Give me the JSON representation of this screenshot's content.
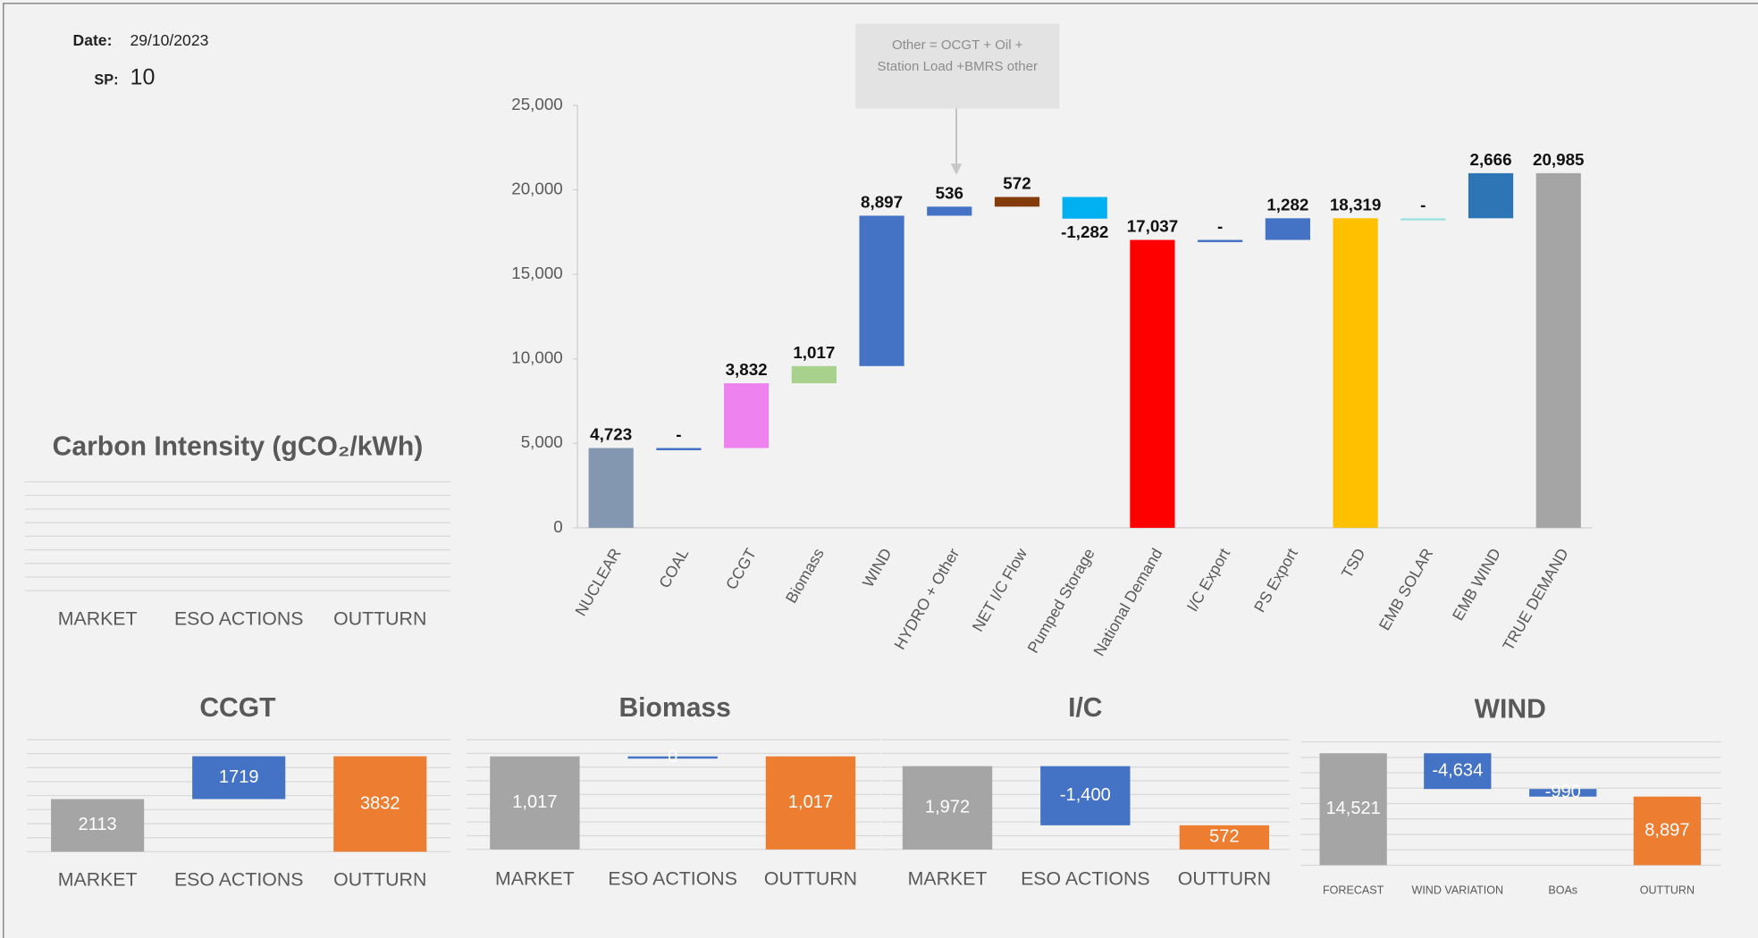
{
  "header": {
    "date_label": "Date:",
    "date": "29/10/2023",
    "sp_label": "SP:",
    "sp": 10
  },
  "chart_data": [
    {
      "type": "waterfall",
      "annotation": "Other = OCGT + Oil + Station Load +BMRS other",
      "categories": [
        "NUCLEAR",
        "COAL",
        "CCGT",
        "Biomass",
        "WIND",
        "HYDRO + Other",
        "NET I/C Flow",
        "Pumped Storage",
        "National Demand",
        "I/C Export",
        "PS Export",
        "TSD",
        "EMB SOLAR",
        "EMB WIND",
        "TRUE DEMAND"
      ],
      "values": [
        4723,
        0,
        3832,
        1017,
        8897,
        536,
        572,
        -1282,
        17037,
        0,
        1282,
        18319,
        0,
        2666,
        20985
      ],
      "value_labels": [
        "4,723",
        "-",
        "3,832",
        "1,017",
        "8,897",
        "536",
        "572",
        "-1,282",
        "17,037",
        "-",
        "1,282",
        "18,319",
        "-",
        "2,666",
        "20,985"
      ],
      "colors": [
        "#8497b0",
        "#4472c4",
        "#ee82ee",
        "#a9d18e",
        "#4472c4",
        "#4472c4",
        "#843c0c",
        "#00b0f0",
        "#ff0000",
        "#4472c4",
        "#4472c4",
        "#ffc000",
        "#9fe3e3",
        "#2e75b6",
        "#a5a5a5"
      ],
      "totals": [
        false,
        false,
        false,
        false,
        false,
        false,
        false,
        false,
        true,
        false,
        false,
        true,
        false,
        false,
        true
      ],
      "ylim": [
        0,
        25000
      ],
      "yticks": [
        0,
        {
          "value": 5000,
          "label": "5,000"
        },
        {
          "value": 10000,
          "label": "10,000"
        },
        {
          "value": 15000,
          "label": "15,000"
        },
        {
          "value": 20000,
          "label": "20,000"
        },
        {
          "value": 25000,
          "label": "25,000"
        }
      ]
    },
    {
      "type": "waterfall",
      "title": "Carbon Intensity (gCO₂/kWh)",
      "categories": [
        "MARKET",
        "ESO ACTIONS",
        "OUTTURN"
      ]
    },
    {
      "type": "waterfall",
      "title": "CCGT",
      "categories": [
        "MARKET",
        "ESO ACTIONS",
        "OUTTURN"
      ],
      "values": [
        2113,
        1719,
        3832
      ],
      "colors": [
        "#a5a5a5",
        "#4472c4",
        "#ed7d31"
      ],
      "totals": [
        true,
        false,
        true
      ],
      "ylim": [
        0,
        4500
      ]
    },
    {
      "type": "waterfall",
      "title": "Biomass",
      "categories": [
        "MARKET",
        "ESO ACTIONS",
        "OUTTURN"
      ],
      "values": [
        1017,
        0,
        1017
      ],
      "value_labels": [
        "1,017",
        "0",
        "1,017"
      ],
      "colors": [
        "#a5a5a5",
        "#4472c4",
        "#ed7d31"
      ],
      "totals": [
        true,
        false,
        true
      ],
      "ylim": [
        0,
        1200
      ]
    },
    {
      "type": "waterfall",
      "title": "I/C",
      "categories": [
        "MARKET",
        "ESO ACTIONS",
        "OUTTURN"
      ],
      "values": [
        1972,
        -1400,
        572
      ],
      "value_labels": [
        "1,972",
        "-1,400",
        "572"
      ],
      "colors": [
        "#a5a5a5",
        "#4472c4",
        "#ed7d31"
      ],
      "totals": [
        true,
        false,
        true
      ],
      "ylim": [
        0,
        2600
      ]
    },
    {
      "type": "waterfall",
      "title": "WIND",
      "categories": [
        "FORECAST",
        "WIND VARIATION",
        "BOAs",
        "OUTTURN"
      ],
      "values": [
        14521,
        -4634,
        -990,
        8897
      ],
      "value_labels": [
        "14,521",
        "-4,634",
        "-990",
        "8,897"
      ],
      "colors": [
        "#a5a5a5",
        "#4472c4",
        "#4472c4",
        "#ed7d31"
      ],
      "totals": [
        true,
        false,
        false,
        true
      ],
      "ylim": [
        0,
        16000
      ]
    }
  ]
}
